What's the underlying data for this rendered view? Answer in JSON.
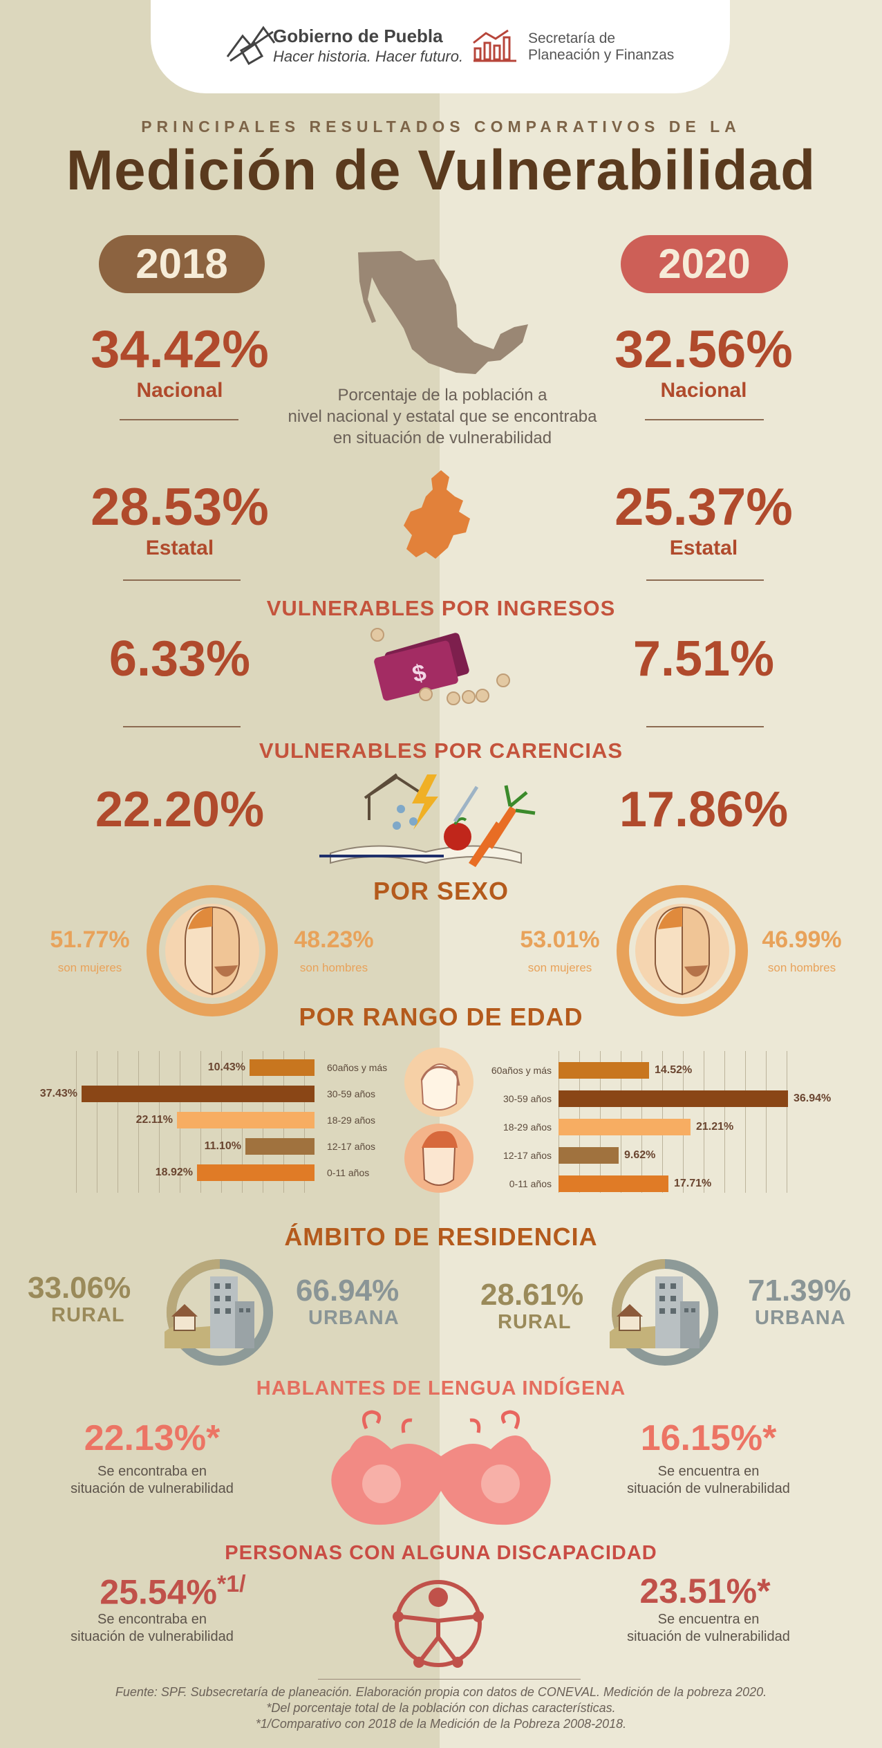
{
  "header": {
    "gov_name": "Gobierno de Puebla",
    "gov_slogan": "Hacer historia. Hacer futuro.",
    "sec_line1": "Secretaría de",
    "sec_line2": "Planeación y Finanzas",
    "icons": [
      "puebla-logo-icon",
      "finance-chart-icon"
    ]
  },
  "kicker": "PRINCIPALES RESULTADOS COMPARATIVOS DE LA",
  "title": "Medición de Vulnerabilidad",
  "years": {
    "left": "2018",
    "right": "2020"
  },
  "colors": {
    "brown": "#8c6340",
    "red": "#cd5f57",
    "rust": "#b04a2c",
    "orange": "#e08a3c",
    "dark": "#5a3a1e"
  },
  "national": {
    "left": "34.42%",
    "right": "32.56%",
    "label": "Nacional"
  },
  "state": {
    "left": "28.53%",
    "right": "25.37%",
    "label": "Estatal"
  },
  "description": [
    "Porcentaje de la población a",
    "nivel nacional y estatal que se encontraba",
    "en situación de vulnerabilidad"
  ],
  "ingresos": {
    "title": "VULNERABLES POR INGRESOS",
    "left": "6.33%",
    "right": "7.51%"
  },
  "carencias": {
    "title": "VULNERABLES POR CARENCIAS",
    "left": "22.20%",
    "right": "17.86%"
  },
  "sexo": {
    "title": "POR SEXO",
    "left": {
      "women": "51.77%",
      "women_label": "son mujeres",
      "men": "48.23%",
      "men_label": "son hombres"
    },
    "right": {
      "women": "53.01%",
      "women_label": "son mujeres",
      "men": "46.99%",
      "men_label": "son hombres"
    }
  },
  "edad": {
    "title": "POR RANGO DE EDAD",
    "left": [
      {
        "label": "60años y más",
        "pct": "10.43%",
        "value": 10.43
      },
      {
        "label": "30-59 años",
        "pct": "37.43%",
        "value": 37.43
      },
      {
        "label": "18-29 años",
        "pct": "22.11%",
        "value": 22.11
      },
      {
        "label": "12-17 años",
        "pct": "11.10%",
        "value": 11.1
      },
      {
        "label": "0-11 años",
        "pct": "18.92%",
        "value": 18.92
      }
    ],
    "right": [
      {
        "label": "60años y más",
        "pct": "14.52%",
        "value": 14.52
      },
      {
        "label": "30-59 años",
        "pct": "36.94%",
        "value": 36.94
      },
      {
        "label": "18-29 años",
        "pct": "21.21%",
        "value": 21.21
      },
      {
        "label": "12-17 años",
        "pct": "9.62%",
        "value": 9.62
      },
      {
        "label": "0-11 años",
        "pct": "17.71%",
        "value": 17.71
      }
    ],
    "bar_colors": [
      "#c8761f",
      "#8a4616",
      "#f7ad62",
      "#a0723e",
      "#e07b26"
    ]
  },
  "residencia": {
    "title": "ÁMBITO DE RESIDENCIA",
    "left": {
      "rural": "33.06%",
      "urbana": "66.94%"
    },
    "right": {
      "rural": "28.61%",
      "urbana": "71.39%"
    },
    "rural_label": "RURAL",
    "urban_label": "URBANA"
  },
  "indigena": {
    "title": "HABLANTES DE LENGUA INDÍGENA",
    "left": {
      "pct": "22.13%",
      "mark": "*",
      "line1": "Se encontraba en",
      "line2": "situación de vulnerabilidad"
    },
    "right": {
      "pct": "16.15%",
      "mark": "*",
      "line1": "Se encuentra en",
      "line2": "situación de vulnerabilidad"
    }
  },
  "discapacidad": {
    "title": "PERSONAS CON ALGUNA DISCAPACIDAD",
    "left": {
      "pct": "25.54%",
      "mark": "*1/",
      "line1": "Se encontraba en",
      "line2": "situación de vulnerabilidad"
    },
    "right": {
      "pct": "23.51%",
      "mark": "*",
      "line1": "Se encuentra en",
      "line2": "situación de vulnerabilidad"
    }
  },
  "footer": [
    "Fuente: SPF. Subsecretaría de planeación. Elaboración propia con datos de CONEVAL. Medición de la pobreza 2020.",
    "*Del porcentaje total de la población con dichas características.",
    "*1/Comparativo con 2018 de la Medición de la Pobreza 2008-2018."
  ]
}
